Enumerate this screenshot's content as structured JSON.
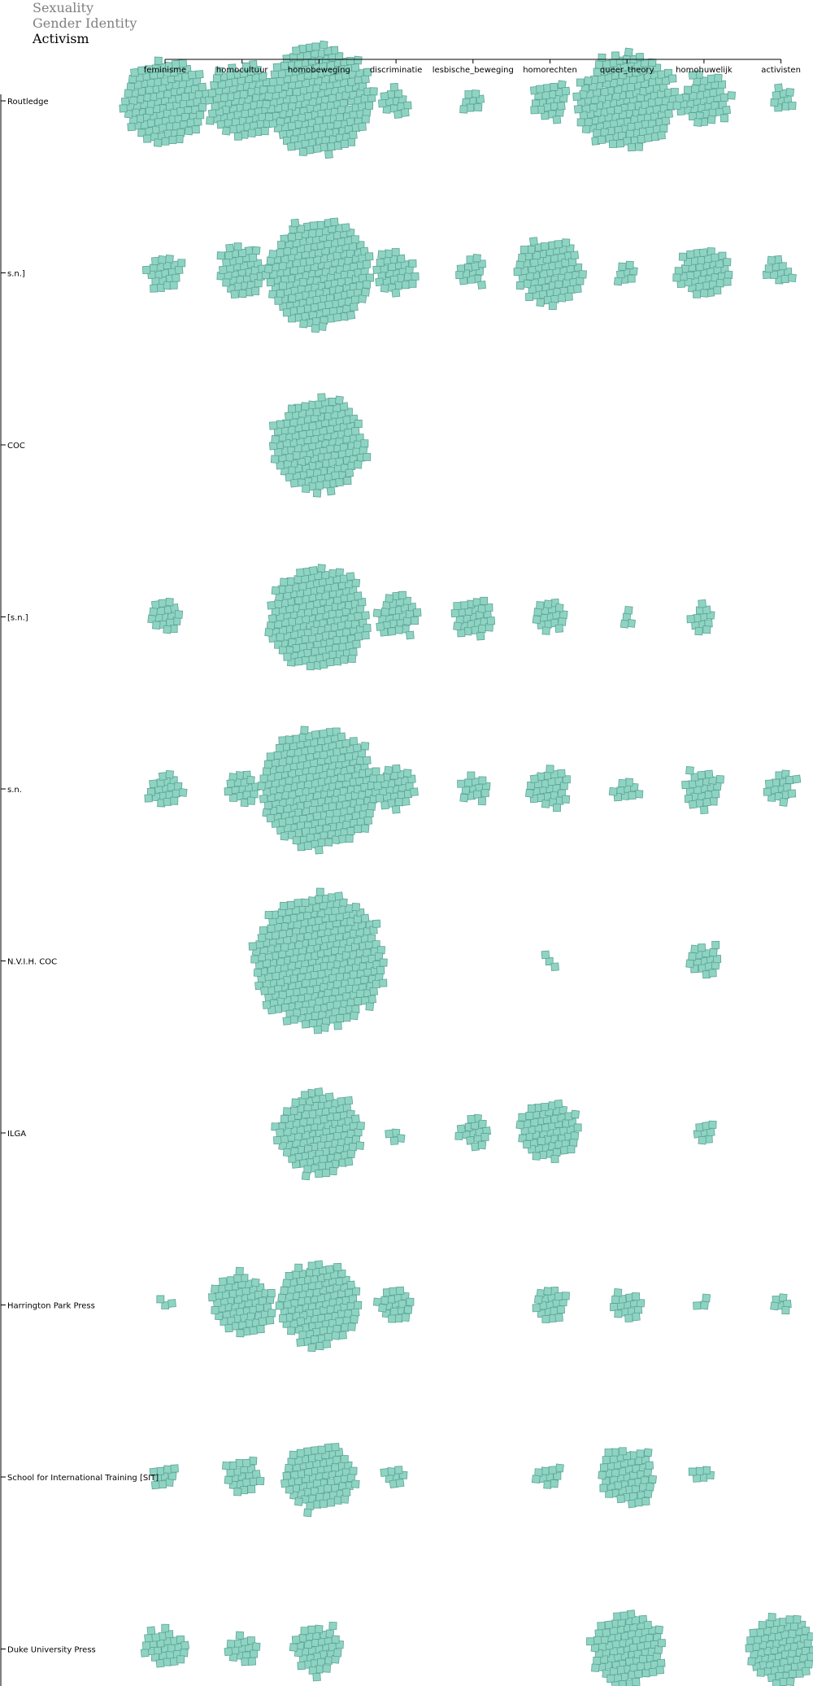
{
  "tabs": [
    {
      "label": "Sexuality",
      "active": false
    },
    {
      "label": "Gender Identity",
      "active": false
    },
    {
      "label": "Activism",
      "active": true
    }
  ],
  "colors": {
    "square_fill": "#8fd3c3",
    "square_stroke": "#5aa596",
    "axis": "#000000",
    "tab_inactive": "#808080",
    "tab_active": "#000000"
  },
  "chart_data": {
    "type": "scatter",
    "mark": "square-swarm",
    "x_categories": [
      "feminisme",
      "homocultuur",
      "homobeweging",
      "discriminatie",
      "lesbische_beweging",
      "homorechten",
      "queer_theory",
      "homohuwelijk",
      "activisten"
    ],
    "y_categories": [
      "Routledge",
      "s.n.]",
      "COC",
      "[s.n.]",
      "s.n.",
      "N.V.I.H. COC",
      "ILGA",
      "Harrington Park Press",
      "School for International Training [SIT]",
      "Duke University Press"
    ],
    "counts": [
      [
        120,
        90,
        200,
        14,
        8,
        24,
        160,
        45,
        10
      ],
      [
        22,
        42,
        190,
        30,
        14,
        75,
        8,
        45,
        12
      ],
      [
        0,
        0,
        150,
        0,
        0,
        0,
        0,
        0,
        0
      ],
      [
        18,
        0,
        175,
        30,
        28,
        18,
        4,
        12,
        0
      ],
      [
        20,
        18,
        240,
        30,
        14,
        28,
        10,
        25,
        16
      ],
      [
        0,
        0,
        300,
        0,
        0,
        3,
        0,
        18,
        0
      ],
      [
        0,
        0,
        120,
        4,
        16,
        60,
        0,
        8,
        0
      ],
      [
        3,
        65,
        115,
        20,
        0,
        20,
        16,
        3,
        6
      ],
      [
        10,
        22,
        80,
        8,
        0,
        10,
        55,
        6,
        0
      ],
      [
        28,
        16,
        40,
        0,
        0,
        0,
        90,
        0,
        80
      ]
    ]
  }
}
